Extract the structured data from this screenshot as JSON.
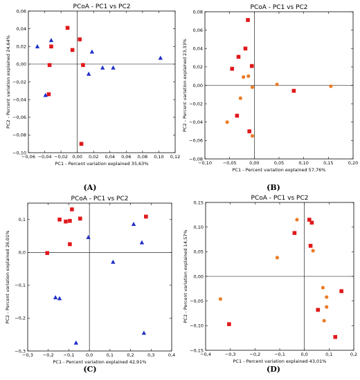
{
  "colors": {
    "red": "#e0191c",
    "blue": "#1f2fc8",
    "orange": "#ec7c26"
  },
  "chart_data": [
    {
      "type": "scatter",
      "panel_label": "(A)",
      "title": "PCoA - PC1 vs PC2",
      "xlabel": "PC1 - Percent variation explained 35,63%",
      "ylabel": "PC2 - Percent variation explained 24,64%",
      "xlim": [
        -0.06,
        0.12
      ],
      "ylim": [
        -0.1,
        0.06
      ],
      "xticks": [
        -0.06,
        -0.04,
        -0.02,
        0.0,
        0.02,
        0.04,
        0.06,
        0.08,
        0.1,
        0.12
      ],
      "yticks": [
        -0.1,
        -0.08,
        -0.06,
        -0.04,
        -0.02,
        0.0,
        0.02,
        0.04,
        0.06
      ],
      "xtick_labels": [
        "−0,06",
        "−0,04",
        "−0,02",
        "0,00",
        "0,02",
        "0,04",
        "0,06",
        "0,08",
        "0,10",
        "0,12"
      ],
      "ytick_labels": [
        "−0,10",
        "−0,08",
        "−0,06",
        "−0,04",
        "−0,02",
        "0,00",
        "0,02",
        "0,04",
        "0,06"
      ],
      "series": [
        {
          "marker": "square",
          "color": "red",
          "points": [
            [
              -0.012,
              0.041
            ],
            [
              0.003,
              0.028
            ],
            [
              -0.032,
              0.02
            ],
            [
              -0.006,
              0.016
            ],
            [
              -0.034,
              -0.001
            ],
            [
              0.007,
              -0.001
            ],
            [
              -0.035,
              -0.034
            ],
            [
              0.005,
              -0.09
            ]
          ]
        },
        {
          "marker": "triangle",
          "color": "blue",
          "points": [
            [
              -0.049,
              0.02
            ],
            [
              -0.032,
              0.027
            ],
            [
              0.018,
              0.014
            ],
            [
              0.102,
              0.007
            ],
            [
              0.031,
              -0.004
            ],
            [
              0.044,
              -0.004
            ],
            [
              0.014,
              -0.011
            ],
            [
              -0.039,
              -0.035
            ]
          ]
        }
      ]
    },
    {
      "type": "scatter",
      "panel_label": "(B)",
      "title": "PCoA - PC1 vs PC2",
      "xlabel": "PC1 - Percent variation explained 57,76%",
      "ylabel": "PC2 - Percent variation explained 23,33%",
      "xlim": [
        -0.1,
        0.2
      ],
      "ylim": [
        -0.08,
        0.08
      ],
      "xticks": [
        -0.1,
        -0.05,
        0.0,
        0.05,
        0.1,
        0.15,
        0.2
      ],
      "yticks": [
        -0.08,
        -0.06,
        -0.04,
        -0.02,
        0.0,
        0.02,
        0.04,
        0.06,
        0.08
      ],
      "xtick_labels": [
        "−0,10",
        "−0,05",
        "0,00",
        "0,05",
        "0,10",
        "0,15",
        "0,20"
      ],
      "ytick_labels": [
        "−0,08",
        "−0,06",
        "−0,04",
        "−0,02",
        "0,00",
        "0,02",
        "0,04",
        "0,06",
        "0,08"
      ],
      "series": [
        {
          "marker": "square",
          "color": "red",
          "points": [
            [
              -0.013,
              0.071
            ],
            [
              -0.018,
              0.04
            ],
            [
              -0.032,
              0.031
            ],
            [
              -0.045,
              0.018
            ],
            [
              -0.005,
              0.021
            ],
            [
              0.08,
              -0.006
            ],
            [
              -0.035,
              -0.033
            ],
            [
              -0.01,
              -0.05
            ]
          ]
        },
        {
          "marker": "circle",
          "color": "orange",
          "points": [
            [
              -0.022,
              0.009
            ],
            [
              -0.012,
              0.01
            ],
            [
              -0.004,
              -0.002
            ],
            [
              0.046,
              0.001
            ],
            [
              0.155,
              -0.001
            ],
            [
              -0.028,
              -0.014
            ],
            [
              -0.055,
              -0.04
            ],
            [
              -0.004,
              -0.055
            ]
          ]
        }
      ]
    },
    {
      "type": "scatter",
      "panel_label": "(C)",
      "title": "PCoA - PC1 vs PC2",
      "xlabel": "PC1 - Percent variation explained 42,91%",
      "ylabel": "PC2 - Percent variation explained 26,01%",
      "xlim": [
        -0.3,
        0.4
      ],
      "ylim": [
        -0.3,
        0.15
      ],
      "xticks": [
        -0.3,
        -0.2,
        -0.1,
        0.0,
        0.1,
        0.2,
        0.3,
        0.4
      ],
      "yticks": [
        -0.3,
        -0.2,
        -0.1,
        0.0,
        0.1
      ],
      "xtick_labels": [
        "−0,3",
        "−0,2",
        "−0,1",
        "0,0",
        "0,1",
        "0,2",
        "0,3",
        "0,4"
      ],
      "ytick_labels": [
        "−0,3",
        "−0,2",
        "−0,1",
        "0,0",
        "0,1"
      ],
      "series": [
        {
          "marker": "square",
          "color": "red",
          "points": [
            [
              -0.085,
              0.131
            ],
            [
              -0.095,
              0.096
            ],
            [
              -0.115,
              0.094
            ],
            [
              -0.145,
              0.1
            ],
            [
              -0.045,
              0.103
            ],
            [
              0.275,
              0.109
            ],
            [
              -0.095,
              0.025
            ],
            [
              -0.205,
              -0.002
            ]
          ]
        },
        {
          "marker": "triangle",
          "color": "blue",
          "points": [
            [
              0.215,
              0.086
            ],
            [
              -0.005,
              0.046
            ],
            [
              0.255,
              0.03
            ],
            [
              0.115,
              -0.029
            ],
            [
              -0.165,
              -0.137
            ],
            [
              -0.145,
              -0.14
            ],
            [
              0.265,
              -0.245
            ],
            [
              -0.065,
              -0.275
            ]
          ]
        }
      ]
    },
    {
      "type": "scatter",
      "panel_label": "(D)",
      "title": "PCoA - PC1 vs PC2",
      "xlabel": "PC1 - Percent variation explained 43,01%",
      "ylabel": "PC2 - Percent variation explained 14,57%",
      "xlim": [
        -0.4,
        0.2
      ],
      "ylim": [
        -0.15,
        0.15
      ],
      "xticks": [
        -0.4,
        -0.3,
        -0.2,
        -0.1,
        0.0,
        0.1,
        0.2
      ],
      "yticks": [
        -0.15,
        -0.1,
        -0.05,
        0.0,
        0.05,
        0.1,
        0.15
      ],
      "xtick_labels": [
        "−0,4",
        "−0,3",
        "−0,2",
        "−0,1",
        "0,0",
        "0,1",
        "0,2"
      ],
      "ytick_labels": [
        "−0,15",
        "−0,10",
        "−0,05",
        "0,00",
        "0,05",
        "0,10",
        "0,15"
      ],
      "series": [
        {
          "marker": "square",
          "color": "red",
          "points": [
            [
              0.02,
              0.115
            ],
            [
              0.03,
              0.109
            ],
            [
              -0.04,
              0.088
            ],
            [
              0.025,
              0.062
            ],
            [
              0.15,
              -0.03
            ],
            [
              0.055,
              -0.068
            ],
            [
              0.125,
              -0.123
            ],
            [
              -0.305,
              -0.097
            ]
          ]
        },
        {
          "marker": "circle",
          "color": "orange",
          "points": [
            [
              -0.03,
              0.115
            ],
            [
              0.035,
              0.052
            ],
            [
              -0.11,
              0.038
            ],
            [
              0.075,
              -0.023
            ],
            [
              0.09,
              -0.042
            ],
            [
              0.09,
              -0.062
            ],
            [
              0.08,
              -0.09
            ],
            [
              -0.34,
              -0.046
            ]
          ]
        }
      ]
    }
  ]
}
